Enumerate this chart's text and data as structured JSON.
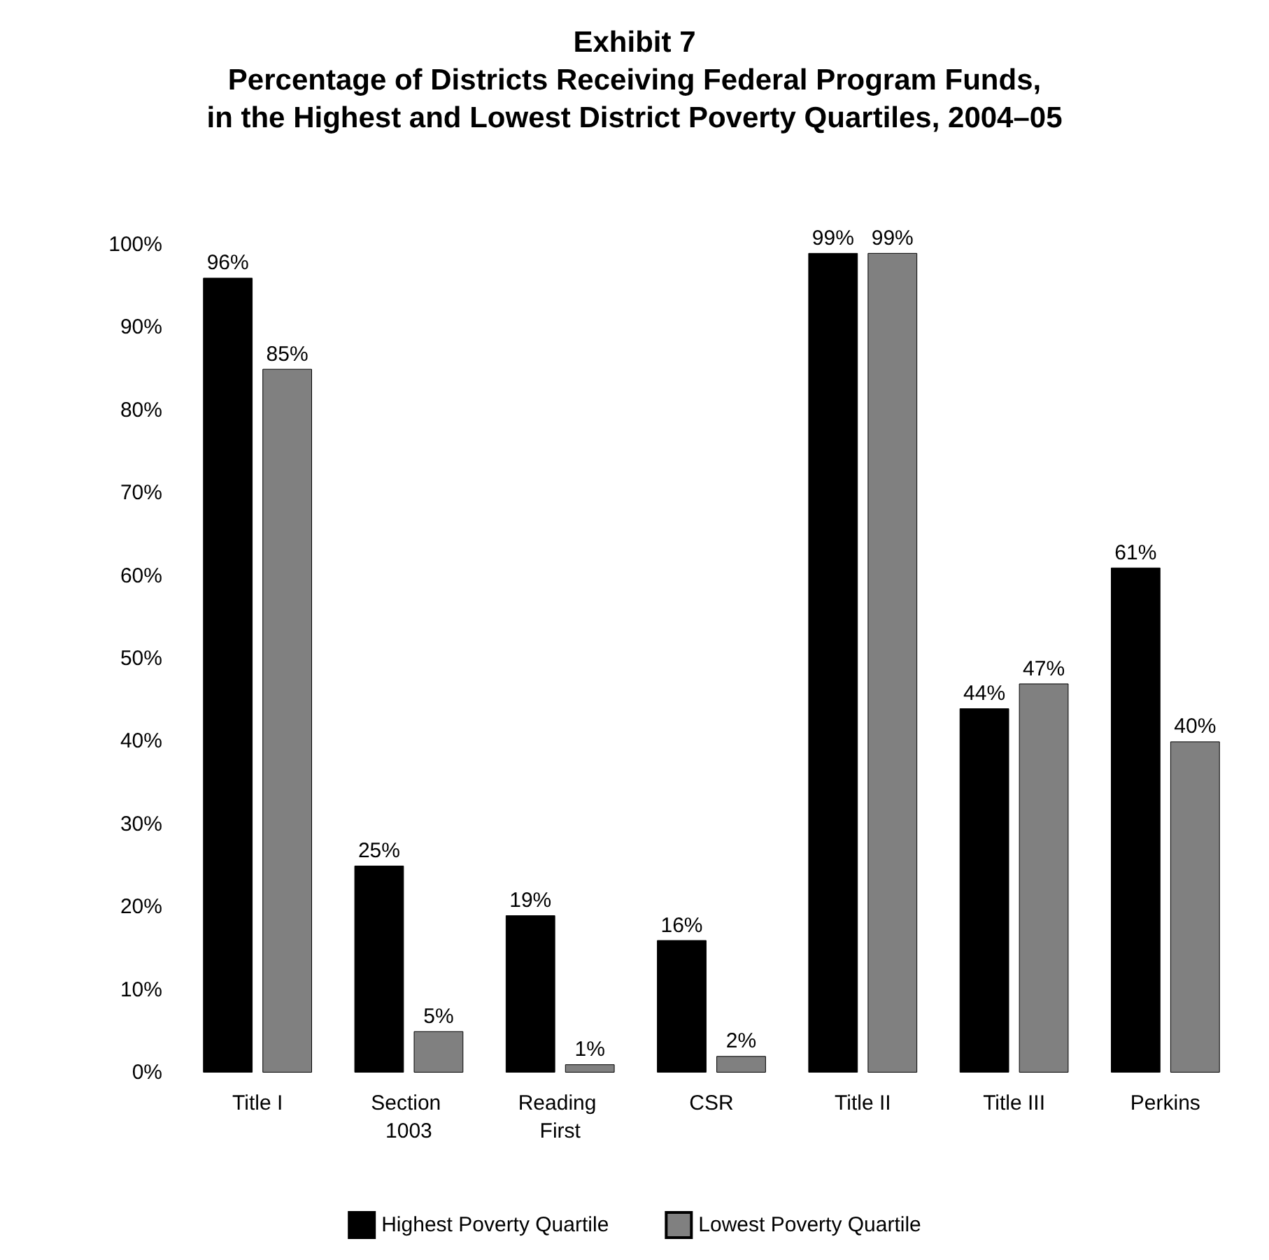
{
  "chart_data": {
    "type": "bar",
    "title": "Exhibit 7\nPercentage of Districts Receiving Federal Program Funds,\nin the Highest and Lowest District Poverty Quartiles, 2004–05",
    "categories": [
      "Title I",
      "Section 1003",
      "Reading First",
      "CSR",
      "Title II",
      "Title III",
      "Perkins"
    ],
    "series": [
      {
        "name": "Highest Poverty Quartile",
        "color": "#000000",
        "values": [
          96,
          25,
          19,
          16,
          99,
          44,
          61
        ],
        "value_labels": [
          "96%",
          "25%",
          "19%",
          "16%",
          "99%",
          "44%",
          "61%"
        ]
      },
      {
        "name": "Lowest Poverty Quartile",
        "color": "#808080",
        "values": [
          85,
          5,
          1,
          2,
          99,
          47,
          40
        ],
        "value_labels": [
          "85%",
          "5%",
          "1%",
          "2%",
          "99%",
          "47%",
          "40%"
        ]
      }
    ],
    "ylim": [
      0,
      100
    ],
    "yticks": [
      {
        "value": 0,
        "label": "0%"
      },
      {
        "value": 10,
        "label": "10%"
      },
      {
        "value": 20,
        "label": "20%"
      },
      {
        "value": 30,
        "label": "30%"
      },
      {
        "value": 40,
        "label": "40%"
      },
      {
        "value": 50,
        "label": "50%"
      },
      {
        "value": 60,
        "label": "60%"
      },
      {
        "value": 70,
        "label": "70%"
      },
      {
        "value": 80,
        "label": "80%"
      },
      {
        "value": 90,
        "label": "90%"
      },
      {
        "value": 100,
        "label": "100%"
      }
    ],
    "grid": false,
    "legend": "bottom"
  }
}
